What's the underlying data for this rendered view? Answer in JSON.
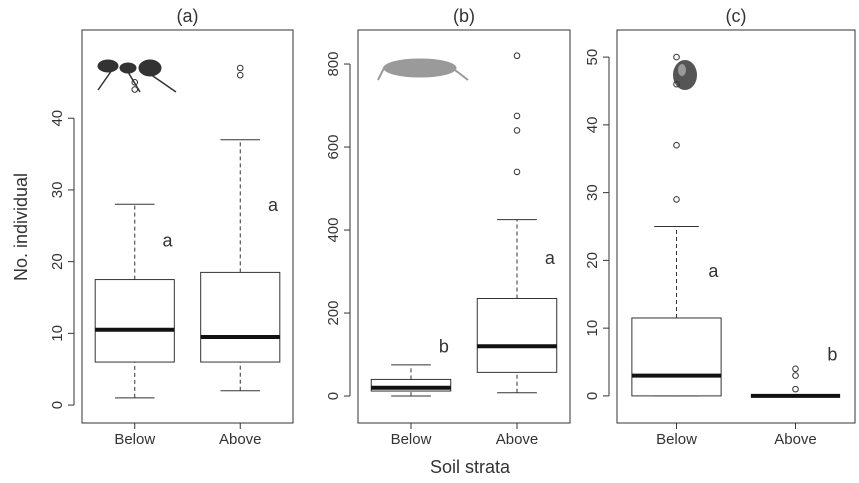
{
  "ylabel": "No. individual",
  "xlabel": "Soil strata",
  "chart_data": [
    {
      "type": "box",
      "title": "(a)",
      "categories": [
        "Below",
        "Above"
      ],
      "ylim": [
        -2.5,
        52.3
      ],
      "yticks": [
        0,
        10,
        20,
        30,
        40
      ],
      "boxes": [
        {
          "whislo": 1,
          "q1": 6,
          "med": 10.5,
          "q3": 17.5,
          "whishi": 28,
          "fliers": [
            44,
            45
          ]
        },
        {
          "whislo": 2,
          "q1": 6,
          "med": 9.5,
          "q3": 18.5,
          "whishi": 37,
          "fliers": [
            46,
            47
          ]
        }
      ],
      "letters": [
        "a",
        "a"
      ]
    },
    {
      "type": "box",
      "title": "(b)",
      "categories": [
        "Below",
        "Above"
      ],
      "ylim": [
        -65,
        882
      ],
      "yticks": [
        0,
        200,
        400,
        600,
        800
      ],
      "boxes": [
        {
          "whislo": 0,
          "q1": 12,
          "med": 20,
          "q3": 40,
          "whishi": 75,
          "fliers": []
        },
        {
          "whislo": 8,
          "q1": 57,
          "med": 120,
          "q3": 235,
          "whishi": 425,
          "fliers": [
            540,
            640,
            675,
            820
          ]
        }
      ],
      "letters": [
        "b",
        "a"
      ]
    },
    {
      "type": "box",
      "title": "(c)",
      "categories": [
        "Below",
        "Above"
      ],
      "ylim": [
        -4,
        54
      ],
      "yticks": [
        0,
        10,
        20,
        30,
        40,
        50
      ],
      "boxes": [
        {
          "whislo": 0,
          "q1": 0,
          "med": 3,
          "q3": 11.5,
          "whishi": 25,
          "fliers": [
            29,
            37,
            46,
            50
          ]
        },
        {
          "whislo": 0,
          "q1": 0,
          "med": 0,
          "q3": 0,
          "whishi": 0,
          "fliers": [
            1,
            3,
            4
          ]
        }
      ],
      "letters": [
        "a",
        "b"
      ]
    }
  ]
}
